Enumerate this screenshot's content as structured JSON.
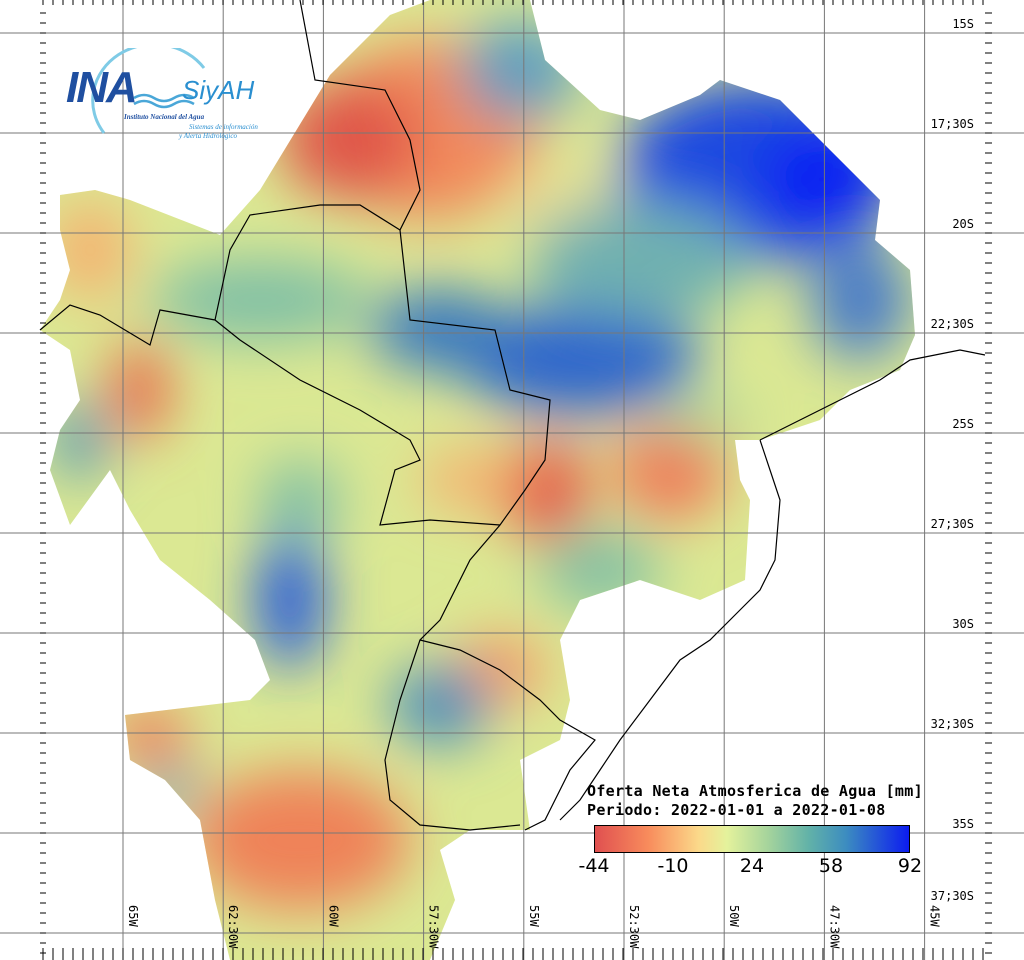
{
  "logo": {
    "main": "INA",
    "product": "SiyAH",
    "institute": "Instituto Nacional del Agua",
    "system_line1": "Sistemas de información",
    "system_line2": "y Alerta Hidrológico"
  },
  "legend": {
    "title": "Oferta Neta Atmosferica de Agua [mm]",
    "period": "Periodo: 2022-01-01 a 2022-01-08",
    "ticks": [
      "-44",
      "-10",
      "24",
      "58",
      "92"
    ],
    "colors": [
      "#e05050",
      "#f88c5c",
      "#fbd98a",
      "#e4f29c",
      "#a6d49c",
      "#62b2a8",
      "#3c8cc0",
      "#0c1cf0"
    ]
  },
  "lat_labels": [
    "15S",
    "17;30S",
    "20S",
    "22;30S",
    "25S",
    "27;30S",
    "30S",
    "32;30S",
    "35S",
    "37;30S"
  ],
  "lon_labels": [
    "65W",
    "62:30W",
    "60W",
    "57:30W",
    "55W",
    "52:30W",
    "50W",
    "47:30W",
    "45W"
  ]
}
